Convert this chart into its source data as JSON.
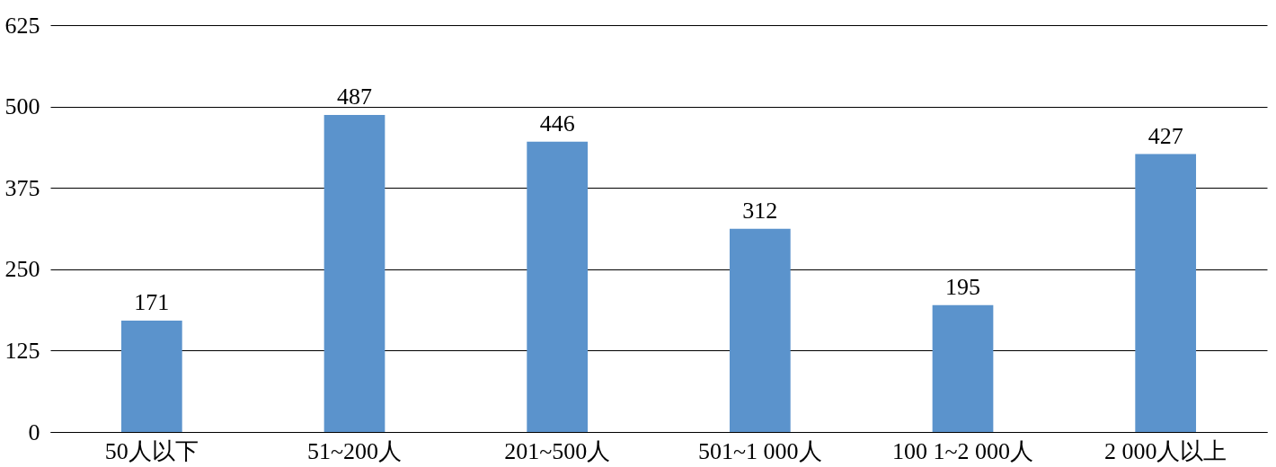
{
  "chart_data": {
    "type": "bar",
    "categories": [
      "50人以下",
      "51~200人",
      "201~500人",
      "501~1 000人",
      "100 1~2 000人",
      "2 000人以上"
    ],
    "values": [
      171,
      487,
      446,
      312,
      195,
      427
    ],
    "color": "#5b93cc",
    "ylim": [
      0,
      625
    ],
    "yticks": [
      0,
      125,
      250,
      375,
      500,
      625
    ],
    "grid": "y",
    "data_labels": true
  }
}
